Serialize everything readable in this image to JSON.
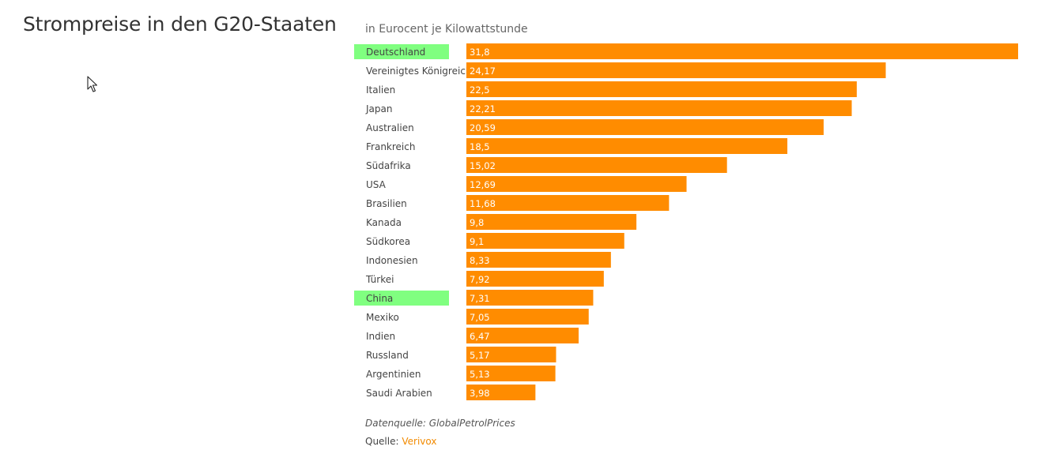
{
  "title": "Strompreise in den G20-Staaten",
  "subtitle": "in Eurocent je Kilowattstunde",
  "source": "Datenquelle: GlobalPetrolPrices",
  "credit": {
    "prefix": "Quelle:",
    "link": "Verivox"
  },
  "colors": {
    "bar": "#ff8c00",
    "highlight": "#80ff80",
    "label": "#444444",
    "value_label": "#ffffff",
    "link": "#f28a00"
  },
  "chart_data": {
    "type": "bar",
    "orientation": "horizontal",
    "categories": [
      "Deutschland",
      "Vereinigtes Königreich",
      "Italien",
      "Japan",
      "Australien",
      "Frankreich",
      "Südafrika",
      "USA",
      "Brasilien",
      "Kanada",
      "Südkorea",
      "Indonesien",
      "Türkei",
      "China",
      "Mexiko",
      "Indien",
      "Russland",
      "Argentinien",
      "Saudi Arabien"
    ],
    "values": [
      31.8,
      24.17,
      22.5,
      22.21,
      20.59,
      18.5,
      15.02,
      12.69,
      11.68,
      9.8,
      9.1,
      8.33,
      7.92,
      7.31,
      7.05,
      6.47,
      5.17,
      5.13,
      3.98
    ],
    "value_labels": [
      "31,8",
      "24,17",
      "22,5",
      "22,21",
      "20,59",
      "18,5",
      "15,02",
      "12,69",
      "11,68",
      "9,8",
      "9,1",
      "8,33",
      "7,92",
      "7,31",
      "7,05",
      "6,47",
      "5,17",
      "5,13",
      "3,98"
    ],
    "highlighted": [
      "Deutschland",
      "China"
    ],
    "xlim": [
      0,
      31.8
    ],
    "grid": false,
    "title": "Strompreise in den G20-Staaten",
    "subtitle": "in Eurocent je Kilowattstunde"
  }
}
